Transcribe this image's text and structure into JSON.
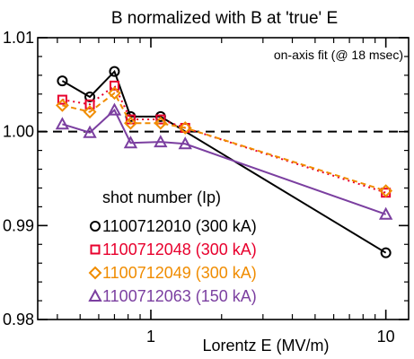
{
  "chart_data": {
    "type": "line",
    "title": "B normalized with B at 'true' E",
    "xlabel": "Lorentz E (MV/m)",
    "ylabel": "",
    "xscale": "log",
    "xlim": [
      0.33,
      12.5
    ],
    "ylim": [
      0.98,
      1.01
    ],
    "x_ticks": [
      1,
      10
    ],
    "x_tick_labels": [
      "1",
      "10"
    ],
    "y_ticks": [
      0.98,
      0.99,
      1.0,
      1.01
    ],
    "y_tick_labels": [
      "0.98",
      "0.99",
      "1.00",
      "1.01"
    ],
    "reference_line": {
      "y": 1.0,
      "style": "dashed"
    },
    "annotation": "on-axis fit (@ 18 msec)",
    "legend_title": "shot number (Ip)",
    "legend_position": "bottom-left",
    "grid": false,
    "series": [
      {
        "name": "1100712010 (300 kA)",
        "color": "#000000",
        "marker": "circle",
        "line": "solid",
        "x": [
          0.42,
          0.55,
          0.7,
          0.82,
          1.1,
          10
        ],
        "y": [
          1.0054,
          1.0037,
          1.0064,
          1.0016,
          1.0016,
          0.9871
        ]
      },
      {
        "name": "1100712048 (300 kA)",
        "color": "#e8002d",
        "marker": "square",
        "line": "dotted",
        "x": [
          0.42,
          0.55,
          0.7,
          0.82,
          1.1,
          1.4,
          10
        ],
        "y": [
          1.0034,
          1.0029,
          1.0049,
          1.0013,
          1.0013,
          1.0004,
          0.9935
        ]
      },
      {
        "name": "1100712049 (300 kA)",
        "color": "#f08c00",
        "marker": "diamond",
        "line": "dashed",
        "x": [
          0.42,
          0.55,
          0.7,
          0.82,
          1.1,
          1.4,
          10
        ],
        "y": [
          1.0028,
          1.0021,
          1.0041,
          1.0009,
          1.0009,
          1.0004,
          0.9937
        ]
      },
      {
        "name": "1100712063 (150 kA)",
        "color": "#7b3fa0",
        "marker": "triangle",
        "line": "solid",
        "x": [
          0.42,
          0.55,
          0.7,
          0.82,
          1.1,
          1.4,
          10
        ],
        "y": [
          1.0008,
          0.9999,
          1.0023,
          0.9988,
          0.9989,
          0.9987,
          0.9912
        ]
      }
    ]
  }
}
